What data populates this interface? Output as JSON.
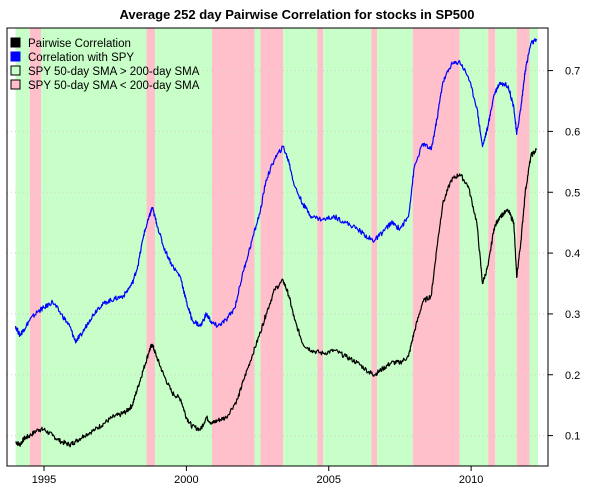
{
  "chart_data": {
    "type": "line",
    "title": "Average 252 day Pairwise Correlation for stocks in SP500",
    "xlabel": "",
    "ylabel": "",
    "xlim": [
      1993.7,
      2012.7
    ],
    "ylim": [
      0.05,
      0.77
    ],
    "x_ticks": [
      1995,
      2000,
      2005,
      2010
    ],
    "x_tick_labels": [
      "1995",
      "2000",
      "2005",
      "2010"
    ],
    "y_ticks": [
      0.1,
      0.2,
      0.3,
      0.4,
      0.5,
      0.6,
      0.7
    ],
    "y_tick_labels": [
      "0.1",
      "0.2",
      "0.3",
      "0.4",
      "0.5",
      "0.6",
      "0.7"
    ],
    "y_axis_side": "right",
    "grid": "horizontal dotted",
    "legend": {
      "position": "top-left",
      "entries": [
        {
          "label": "Pairwise Correlation",
          "color": "#000000",
          "fill": "#000000"
        },
        {
          "label": "Correlation with SPY",
          "color": "#0000ff",
          "fill": "#0000ff"
        },
        {
          "label": "SPY 50-day SMA > 200-day SMA",
          "color": "#000000",
          "fill": "#c8ffc8"
        },
        {
          "label": "SPY 50-day SMA < 200-day SMA",
          "color": "#000000",
          "fill": "#ffc0cb"
        }
      ]
    },
    "regimes": [
      {
        "start": 1994.0,
        "end": 1994.5,
        "state": "above"
      },
      {
        "start": 1994.5,
        "end": 1994.9,
        "state": "below"
      },
      {
        "start": 1994.9,
        "end": 1998.6,
        "state": "above"
      },
      {
        "start": 1998.6,
        "end": 1998.9,
        "state": "below"
      },
      {
        "start": 1998.9,
        "end": 2000.9,
        "state": "above"
      },
      {
        "start": 2000.9,
        "end": 2002.4,
        "state": "below"
      },
      {
        "start": 2002.4,
        "end": 2002.6,
        "state": "above"
      },
      {
        "start": 2002.6,
        "end": 2003.4,
        "state": "below"
      },
      {
        "start": 2003.4,
        "end": 2004.6,
        "state": "above"
      },
      {
        "start": 2004.6,
        "end": 2004.8,
        "state": "below"
      },
      {
        "start": 2004.8,
        "end": 2006.5,
        "state": "above"
      },
      {
        "start": 2006.5,
        "end": 2006.7,
        "state": "below"
      },
      {
        "start": 2006.7,
        "end": 2007.95,
        "state": "above"
      },
      {
        "start": 2007.95,
        "end": 2009.6,
        "state": "below"
      },
      {
        "start": 2009.6,
        "end": 2010.6,
        "state": "above"
      },
      {
        "start": 2010.6,
        "end": 2010.85,
        "state": "below"
      },
      {
        "start": 2010.85,
        "end": 2011.6,
        "state": "above"
      },
      {
        "start": 2011.6,
        "end": 2012.05,
        "state": "below"
      },
      {
        "start": 2012.05,
        "end": 2012.35,
        "state": "above"
      }
    ],
    "regime_colors": {
      "above": "#c8ffc8",
      "below": "#ffc0cb"
    },
    "series": [
      {
        "name": "Pairwise Correlation",
        "color": "#000000",
        "points": [
          [
            1994.0,
            0.09
          ],
          [
            1994.15,
            0.085
          ],
          [
            1994.3,
            0.095
          ],
          [
            1994.5,
            0.1
          ],
          [
            1994.8,
            0.11
          ],
          [
            1995.0,
            0.11
          ],
          [
            1995.3,
            0.1
          ],
          [
            1995.6,
            0.09
          ],
          [
            1995.9,
            0.085
          ],
          [
            1996.1,
            0.09
          ],
          [
            1996.4,
            0.1
          ],
          [
            1996.8,
            0.11
          ],
          [
            1997.1,
            0.12
          ],
          [
            1997.4,
            0.13
          ],
          [
            1997.7,
            0.135
          ],
          [
            1997.9,
            0.14
          ],
          [
            1998.1,
            0.15
          ],
          [
            1998.3,
            0.18
          ],
          [
            1998.5,
            0.21
          ],
          [
            1998.7,
            0.24
          ],
          [
            1998.8,
            0.25
          ],
          [
            1998.95,
            0.23
          ],
          [
            1999.2,
            0.2
          ],
          [
            1999.5,
            0.17
          ],
          [
            1999.8,
            0.16
          ],
          [
            2000.0,
            0.13
          ],
          [
            2000.2,
            0.115
          ],
          [
            2000.5,
            0.11
          ],
          [
            2000.7,
            0.13
          ],
          [
            2000.9,
            0.12
          ],
          [
            2001.1,
            0.125
          ],
          [
            2001.4,
            0.13
          ],
          [
            2001.8,
            0.16
          ],
          [
            2002.0,
            0.19
          ],
          [
            2002.3,
            0.23
          ],
          [
            2002.6,
            0.27
          ],
          [
            2002.8,
            0.3
          ],
          [
            2003.1,
            0.34
          ],
          [
            2003.4,
            0.355
          ],
          [
            2003.6,
            0.33
          ],
          [
            2003.8,
            0.29
          ],
          [
            2004.1,
            0.25
          ],
          [
            2004.4,
            0.24
          ],
          [
            2004.8,
            0.235
          ],
          [
            2005.2,
            0.24
          ],
          [
            2005.6,
            0.23
          ],
          [
            2006.0,
            0.22
          ],
          [
            2006.4,
            0.205
          ],
          [
            2006.6,
            0.2
          ],
          [
            2006.9,
            0.21
          ],
          [
            2007.2,
            0.22
          ],
          [
            2007.5,
            0.22
          ],
          [
            2007.8,
            0.23
          ],
          [
            2008.0,
            0.27
          ],
          [
            2008.3,
            0.32
          ],
          [
            2008.6,
            0.33
          ],
          [
            2008.8,
            0.41
          ],
          [
            2009.0,
            0.48
          ],
          [
            2009.3,
            0.52
          ],
          [
            2009.6,
            0.53
          ],
          [
            2009.9,
            0.51
          ],
          [
            2010.2,
            0.45
          ],
          [
            2010.4,
            0.35
          ],
          [
            2010.6,
            0.38
          ],
          [
            2010.8,
            0.44
          ],
          [
            2011.0,
            0.46
          ],
          [
            2011.3,
            0.47
          ],
          [
            2011.5,
            0.45
          ],
          [
            2011.6,
            0.36
          ],
          [
            2011.75,
            0.42
          ],
          [
            2011.9,
            0.5
          ],
          [
            2012.1,
            0.56
          ],
          [
            2012.3,
            0.57
          ]
        ]
      },
      {
        "name": "Correlation with SPY",
        "color": "#0000ff",
        "points": [
          [
            1994.0,
            0.28
          ],
          [
            1994.15,
            0.265
          ],
          [
            1994.3,
            0.275
          ],
          [
            1994.5,
            0.29
          ],
          [
            1994.8,
            0.305
          ],
          [
            1995.0,
            0.31
          ],
          [
            1995.3,
            0.32
          ],
          [
            1995.6,
            0.3
          ],
          [
            1995.9,
            0.28
          ],
          [
            1996.1,
            0.255
          ],
          [
            1996.3,
            0.265
          ],
          [
            1996.6,
            0.29
          ],
          [
            1996.9,
            0.31
          ],
          [
            1997.2,
            0.32
          ],
          [
            1997.5,
            0.325
          ],
          [
            1997.8,
            0.33
          ],
          [
            1998.1,
            0.35
          ],
          [
            1998.3,
            0.38
          ],
          [
            1998.5,
            0.43
          ],
          [
            1998.7,
            0.46
          ],
          [
            1998.8,
            0.475
          ],
          [
            1998.95,
            0.45
          ],
          [
            1999.2,
            0.41
          ],
          [
            1999.5,
            0.38
          ],
          [
            1999.8,
            0.36
          ],
          [
            2000.0,
            0.32
          ],
          [
            2000.2,
            0.29
          ],
          [
            2000.5,
            0.28
          ],
          [
            2000.7,
            0.3
          ],
          [
            2000.9,
            0.285
          ],
          [
            2001.1,
            0.28
          ],
          [
            2001.4,
            0.29
          ],
          [
            2001.7,
            0.31
          ],
          [
            2002.0,
            0.37
          ],
          [
            2002.3,
            0.42
          ],
          [
            2002.6,
            0.47
          ],
          [
            2002.8,
            0.52
          ],
          [
            2003.1,
            0.555
          ],
          [
            2003.4,
            0.575
          ],
          [
            2003.6,
            0.55
          ],
          [
            2003.8,
            0.51
          ],
          [
            2004.1,
            0.48
          ],
          [
            2004.4,
            0.46
          ],
          [
            2004.8,
            0.455
          ],
          [
            2005.2,
            0.46
          ],
          [
            2005.6,
            0.45
          ],
          [
            2006.0,
            0.44
          ],
          [
            2006.4,
            0.425
          ],
          [
            2006.6,
            0.42
          ],
          [
            2006.9,
            0.435
          ],
          [
            2007.2,
            0.45
          ],
          [
            2007.5,
            0.44
          ],
          [
            2007.8,
            0.46
          ],
          [
            2008.0,
            0.54
          ],
          [
            2008.3,
            0.58
          ],
          [
            2008.6,
            0.57
          ],
          [
            2008.8,
            0.62
          ],
          [
            2009.0,
            0.68
          ],
          [
            2009.3,
            0.71
          ],
          [
            2009.6,
            0.715
          ],
          [
            2009.9,
            0.69
          ],
          [
            2010.2,
            0.64
          ],
          [
            2010.4,
            0.575
          ],
          [
            2010.6,
            0.61
          ],
          [
            2010.8,
            0.66
          ],
          [
            2011.0,
            0.68
          ],
          [
            2011.3,
            0.675
          ],
          [
            2011.5,
            0.64
          ],
          [
            2011.6,
            0.595
          ],
          [
            2011.75,
            0.64
          ],
          [
            2011.9,
            0.7
          ],
          [
            2012.1,
            0.745
          ],
          [
            2012.3,
            0.75
          ]
        ]
      }
    ]
  }
}
